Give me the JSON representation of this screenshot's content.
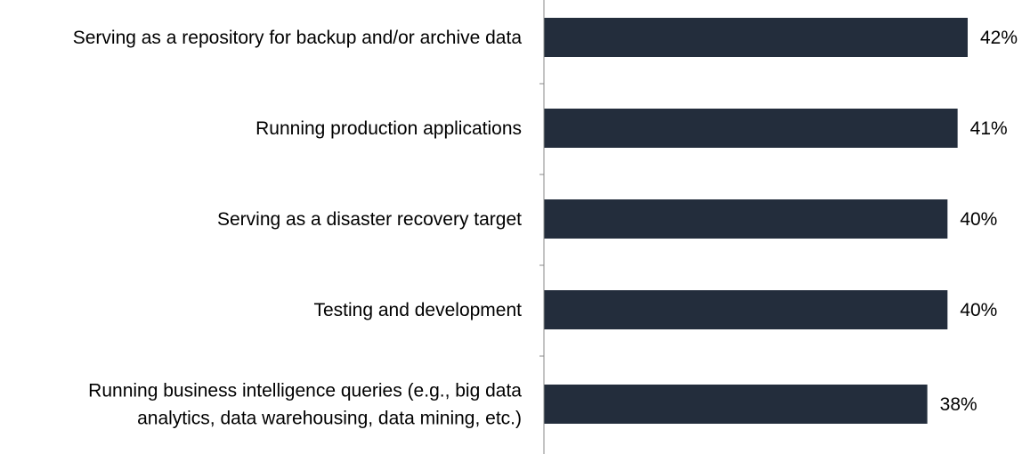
{
  "chart_data": {
    "type": "bar",
    "orientation": "horizontal",
    "categories": [
      "Serving as a repository for backup and/or archive data",
      "Running production applications",
      "Serving as a disaster recovery target",
      "Testing and development",
      "Running business intelligence queries (e.g., big data analytics, data warehousing, data mining, etc.)"
    ],
    "category_lines": [
      [
        "Serving as a repository for backup and/or archive data"
      ],
      [
        "Running production applications"
      ],
      [
        "Serving as a disaster recovery target"
      ],
      [
        "Testing and development"
      ],
      [
        "Running business intelligence queries (e.g., big data",
        "analytics, data warehousing, data mining, etc.)"
      ]
    ],
    "values": [
      42,
      41,
      40,
      40,
      38
    ],
    "value_labels": [
      "42%",
      "41%",
      "40%",
      "40%",
      "38%"
    ],
    "title": "",
    "xlabel": "",
    "ylabel": "",
    "xlim": [
      0,
      42
    ],
    "grid": false,
    "legend": "none",
    "bar_color": "#232d3c"
  }
}
